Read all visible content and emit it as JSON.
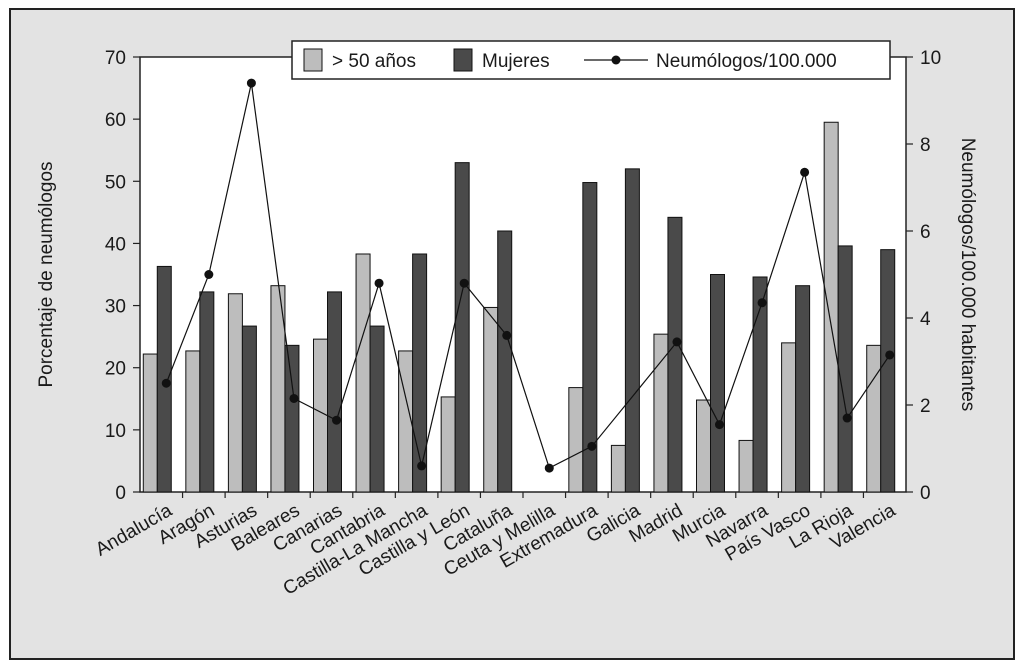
{
  "chart_data": {
    "type": "bar",
    "categories": [
      "Andalucía",
      "Aragón",
      "Asturias",
      "Baleares",
      "Canarias",
      "Cantabria",
      "Castilla-La Mancha",
      "Castilla y León",
      "Cataluña",
      "Ceuta y Melilla",
      "Extremadura",
      "Galicia",
      "Madrid",
      "Murcia",
      "Navarra",
      "País Vasco",
      "La Rioja",
      "Valencia"
    ],
    "series": [
      {
        "name": "> 50 años",
        "kind": "bar",
        "axis": "left",
        "color": "#bdbdbd",
        "values": [
          22.2,
          22.7,
          31.9,
          33.2,
          24.6,
          38.3,
          22.7,
          15.3,
          29.7,
          null,
          16.8,
          7.5,
          25.4,
          14.8,
          8.3,
          24.0,
          59.5,
          23.6
        ]
      },
      {
        "name": "Mujeres",
        "kind": "bar",
        "axis": "left",
        "color": "#4a4a4a",
        "values": [
          36.3,
          32.2,
          26.7,
          23.6,
          32.2,
          26.7,
          38.3,
          53.0,
          42.0,
          null,
          49.8,
          52.0,
          44.2,
          35.0,
          34.6,
          33.2,
          39.6,
          39.0
        ]
      },
      {
        "name": "Neumólogos/100.000",
        "kind": "line",
        "axis": "right",
        "color": "#111111",
        "values": [
          2.5,
          5.0,
          9.4,
          2.15,
          1.65,
          4.8,
          0.6,
          4.8,
          3.6,
          0.55,
          1.05,
          null,
          3.45,
          1.55,
          4.35,
          7.35,
          1.7,
          3.15
        ]
      }
    ],
    "ylabel": "Porcentaje de neumólogos",
    "ylabel_right": "Neumólogos/100.000 habitantes",
    "ylim": [
      0,
      70
    ],
    "ylim_right": [
      0,
      10
    ],
    "yticks": [
      "0",
      "10",
      "20",
      "30",
      "40",
      "50",
      "60",
      "70"
    ],
    "yticks_right": [
      "0",
      "2",
      "4",
      "6",
      "8",
      "10"
    ],
    "legend_position": "top-center",
    "grid": false
  }
}
